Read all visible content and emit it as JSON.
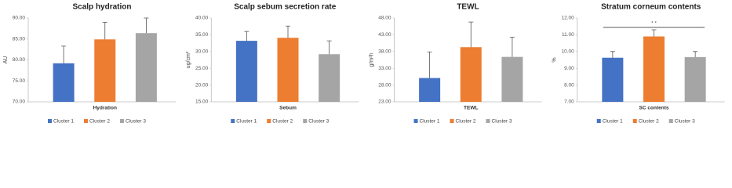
{
  "chart_data": [
    {
      "type": "bar",
      "title": "Scalp hydration",
      "ylabel": "AU",
      "categories": [
        "Hydration"
      ],
      "series": [
        {
          "name": "Cluster 1",
          "color": "#4472c4",
          "values": [
            79.2
          ],
          "errors": [
            4.1
          ]
        },
        {
          "name": "Cluster 2",
          "color": "#ed7d31",
          "values": [
            84.9
          ],
          "errors": [
            4.1
          ]
        },
        {
          "name": "Cluster 3",
          "color": "#a5a5a5",
          "values": [
            86.4
          ],
          "errors": [
            3.6
          ]
        }
      ],
      "ylim": [
        70,
        90
      ],
      "yticks": [
        {
          "value": 70,
          "label": "70.00"
        },
        {
          "value": 75,
          "label": "75.00"
        },
        {
          "value": 80,
          "label": "80.00"
        },
        {
          "value": 85,
          "label": "85.00"
        },
        {
          "value": 90,
          "label": "90.00"
        }
      ],
      "grid": false
    },
    {
      "type": "bar",
      "title": "Scalp sebum secretion rate",
      "ylabel": "ug/cm²",
      "categories": [
        "Sebum"
      ],
      "series": [
        {
          "name": "Cluster 1",
          "color": "#4472c4",
          "values": [
            33.2
          ],
          "errors": [
            2.8
          ]
        },
        {
          "name": "Cluster 2",
          "color": "#ed7d31",
          "values": [
            34.1
          ],
          "errors": [
            3.5
          ]
        },
        {
          "name": "Cluster 3",
          "color": "#a5a5a5",
          "values": [
            29.2
          ],
          "errors": [
            4.0
          ]
        }
      ],
      "ylim": [
        15,
        40
      ],
      "yticks": [
        {
          "value": 15,
          "label": "15.00"
        },
        {
          "value": 20,
          "label": "20.00"
        },
        {
          "value": 25,
          "label": "25.00"
        },
        {
          "value": 30,
          "label": "30.00"
        },
        {
          "value": 35,
          "label": "35.00"
        },
        {
          "value": 40,
          "label": "40.00"
        }
      ],
      "grid": false
    },
    {
      "type": "bar",
      "title": "TEWL",
      "ylabel": "g/m²h",
      "categories": [
        "TEWL"
      ],
      "series": [
        {
          "name": "Cluster 1",
          "color": "#4472c4",
          "values": [
            30.1
          ],
          "errors": [
            7.8
          ]
        },
        {
          "name": "Cluster 2",
          "color": "#ed7d31",
          "values": [
            39.3
          ],
          "errors": [
            7.5
          ]
        },
        {
          "name": "Cluster 3",
          "color": "#a5a5a5",
          "values": [
            36.4
          ],
          "errors": [
            5.9
          ]
        }
      ],
      "ylim": [
        23,
        48
      ],
      "yticks": [
        {
          "value": 23,
          "label": "23.00"
        },
        {
          "value": 28,
          "label": "28.00"
        },
        {
          "value": 33,
          "label": "33.00"
        },
        {
          "value": 38,
          "label": "38.00"
        },
        {
          "value": 43,
          "label": "43.00"
        },
        {
          "value": 48,
          "label": "48.00"
        }
      ],
      "grid": false
    },
    {
      "type": "bar",
      "title": "Stratum corneum contents",
      "ylabel": "%",
      "categories": [
        "SC contents"
      ],
      "series": [
        {
          "name": "Cluster 1",
          "color": "#4472c4",
          "values": [
            9.63
          ],
          "errors": [
            0.37
          ]
        },
        {
          "name": "Cluster 2",
          "color": "#ed7d31",
          "values": [
            10.9
          ],
          "errors": [
            0.4
          ]
        },
        {
          "name": "Cluster 3",
          "color": "#a5a5a5",
          "values": [
            9.67
          ],
          "errors": [
            0.33
          ]
        }
      ],
      "ylim": [
        7,
        12
      ],
      "yticks": [
        {
          "value": 7,
          "label": "7.00"
        },
        {
          "value": 8,
          "label": "8.00"
        },
        {
          "value": 9,
          "label": "9.00"
        },
        {
          "value": 10,
          "label": "10.00"
        },
        {
          "value": 11,
          "label": "11.00"
        },
        {
          "value": 12,
          "label": "12.00"
        }
      ],
      "annotation": "* *",
      "grid": false
    }
  ]
}
